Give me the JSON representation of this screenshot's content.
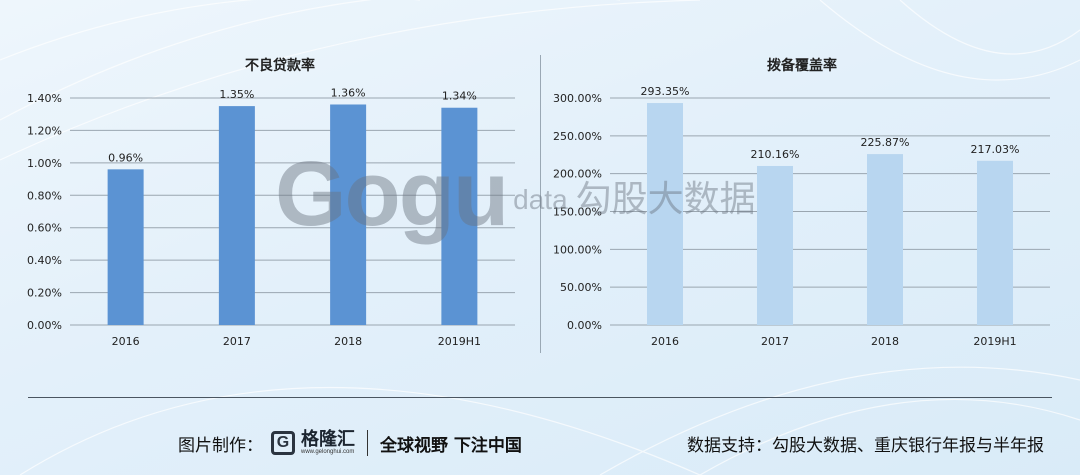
{
  "chart_data": [
    {
      "type": "bar",
      "title": "不良贷款率",
      "categories": [
        "2016",
        "2017",
        "2018",
        "2019H1"
      ],
      "values": [
        0.96,
        1.35,
        1.36,
        1.34
      ],
      "value_labels": [
        "0.96%",
        "1.35%",
        "1.36%",
        "1.34%"
      ],
      "yticks": [
        "0.00%",
        "0.20%",
        "0.40%",
        "0.60%",
        "0.80%",
        "1.00%",
        "1.20%",
        "1.40%"
      ],
      "ylim": [
        0,
        1.4
      ],
      "bar_color": "#5b93d3",
      "grid": true
    },
    {
      "type": "bar",
      "title": "拨备覆盖率",
      "categories": [
        "2016",
        "2017",
        "2018",
        "2019H1"
      ],
      "values": [
        293.35,
        210.16,
        225.87,
        217.03
      ],
      "value_labels": [
        "293.35%",
        "210.16%",
        "225.87%",
        "217.03%"
      ],
      "yticks": [
        "0.00%",
        "50.00%",
        "100.00%",
        "150.00%",
        "200.00%",
        "250.00%",
        "300.00%"
      ],
      "ylim": [
        0,
        300
      ],
      "bar_color": "#b8d6f0",
      "grid": true
    }
  ],
  "watermark": {
    "brand": "Gogu",
    "suffix": "data",
    "cn": "勾股大数据"
  },
  "footer": {
    "left_label": "图片制作：",
    "logo_letter": "G",
    "logo_name": "格隆汇",
    "logo_url": "www.gelonghui.com",
    "slogan": "全球视野 下注中国",
    "right_label": "数据支持：",
    "right_text": "勾股大数据、重庆银行年报与半年报"
  }
}
